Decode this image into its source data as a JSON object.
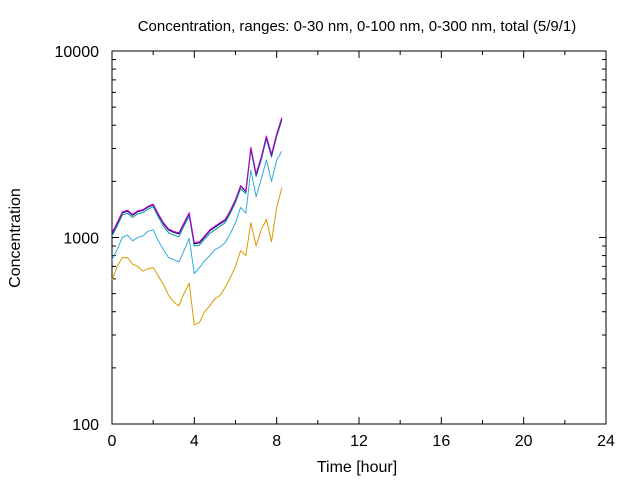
{
  "chart_data": {
    "type": "line",
    "title": "Concentration, ranges: 0-30 nm, 0-100 nm, 0-300 nm, total (5/9/1)",
    "xlabel": "Time [hour]",
    "ylabel": "Concentration",
    "xlim": [
      0,
      24
    ],
    "ylim": [
      100,
      10000
    ],
    "yscale": "log",
    "xticks": [
      "0",
      "4",
      "8",
      "12",
      "16",
      "20",
      "24"
    ],
    "yticks": [
      "100",
      "1000",
      "10000"
    ],
    "grid": false,
    "legend": "none",
    "x": [
      0,
      0.25,
      0.5,
      0.75,
      1,
      1.25,
      1.5,
      1.75,
      2,
      2.25,
      2.5,
      2.75,
      3,
      3.25,
      3.5,
      3.75,
      4,
      4.25,
      4.5,
      4.75,
      5,
      5.25,
      5.5,
      5.75,
      6,
      6.25,
      6.5,
      6.75,
      7,
      7.25,
      7.5,
      7.75,
      8,
      8.25
    ],
    "series": [
      {
        "color": "#cc00cc",
        "values": [
          1060,
          1200,
          1370,
          1400,
          1330,
          1390,
          1410,
          1470,
          1510,
          1340,
          1200,
          1110,
          1080,
          1060,
          1200,
          1360,
          940,
          950,
          1020,
          1100,
          1150,
          1200,
          1250,
          1400,
          1600,
          1900,
          1780,
          3050,
          2200,
          2700,
          3500,
          2800,
          3600,
          4400
        ]
      },
      {
        "color": "#000080",
        "values": [
          1045,
          1185,
          1355,
          1385,
          1315,
          1375,
          1395,
          1455,
          1495,
          1325,
          1185,
          1095,
          1065,
          1045,
          1185,
          1345,
          925,
          935,
          1005,
          1085,
          1135,
          1185,
          1235,
          1385,
          1585,
          1885,
          1765,
          3020,
          2175,
          2670,
          3460,
          2770,
          3560,
          4340
        ]
      },
      {
        "color": "#009999",
        "values": [
          1020,
          1150,
          1320,
          1350,
          1280,
          1340,
          1360,
          1420,
          1460,
          1290,
          1150,
          1060,
          1030,
          1010,
          1150,
          1300,
          900,
          910,
          980,
          1050,
          1100,
          1150,
          1200,
          1350,
          1540,
          1830,
          1720,
          2950,
          2120,
          2600,
          3380,
          2700,
          3480,
          4250
        ]
      },
      {
        "color": "#33aadd",
        "values": [
          760,
          860,
          1000,
          1030,
          960,
          1000,
          1020,
          1080,
          1100,
          960,
          860,
          780,
          760,
          740,
          850,
          990,
          640,
          690,
          750,
          800,
          860,
          890,
          940,
          1050,
          1200,
          1450,
          1350,
          2300,
          1650,
          2050,
          2600,
          2000,
          2600,
          2900
        ]
      },
      {
        "color": "#dd9900",
        "values": [
          590,
          700,
          780,
          780,
          720,
          700,
          660,
          680,
          690,
          620,
          560,
          490,
          450,
          430,
          500,
          570,
          340,
          350,
          400,
          430,
          470,
          490,
          540,
          610,
          700,
          850,
          800,
          1200,
          900,
          1100,
          1250,
          950,
          1450,
          1850
        ]
      }
    ]
  }
}
